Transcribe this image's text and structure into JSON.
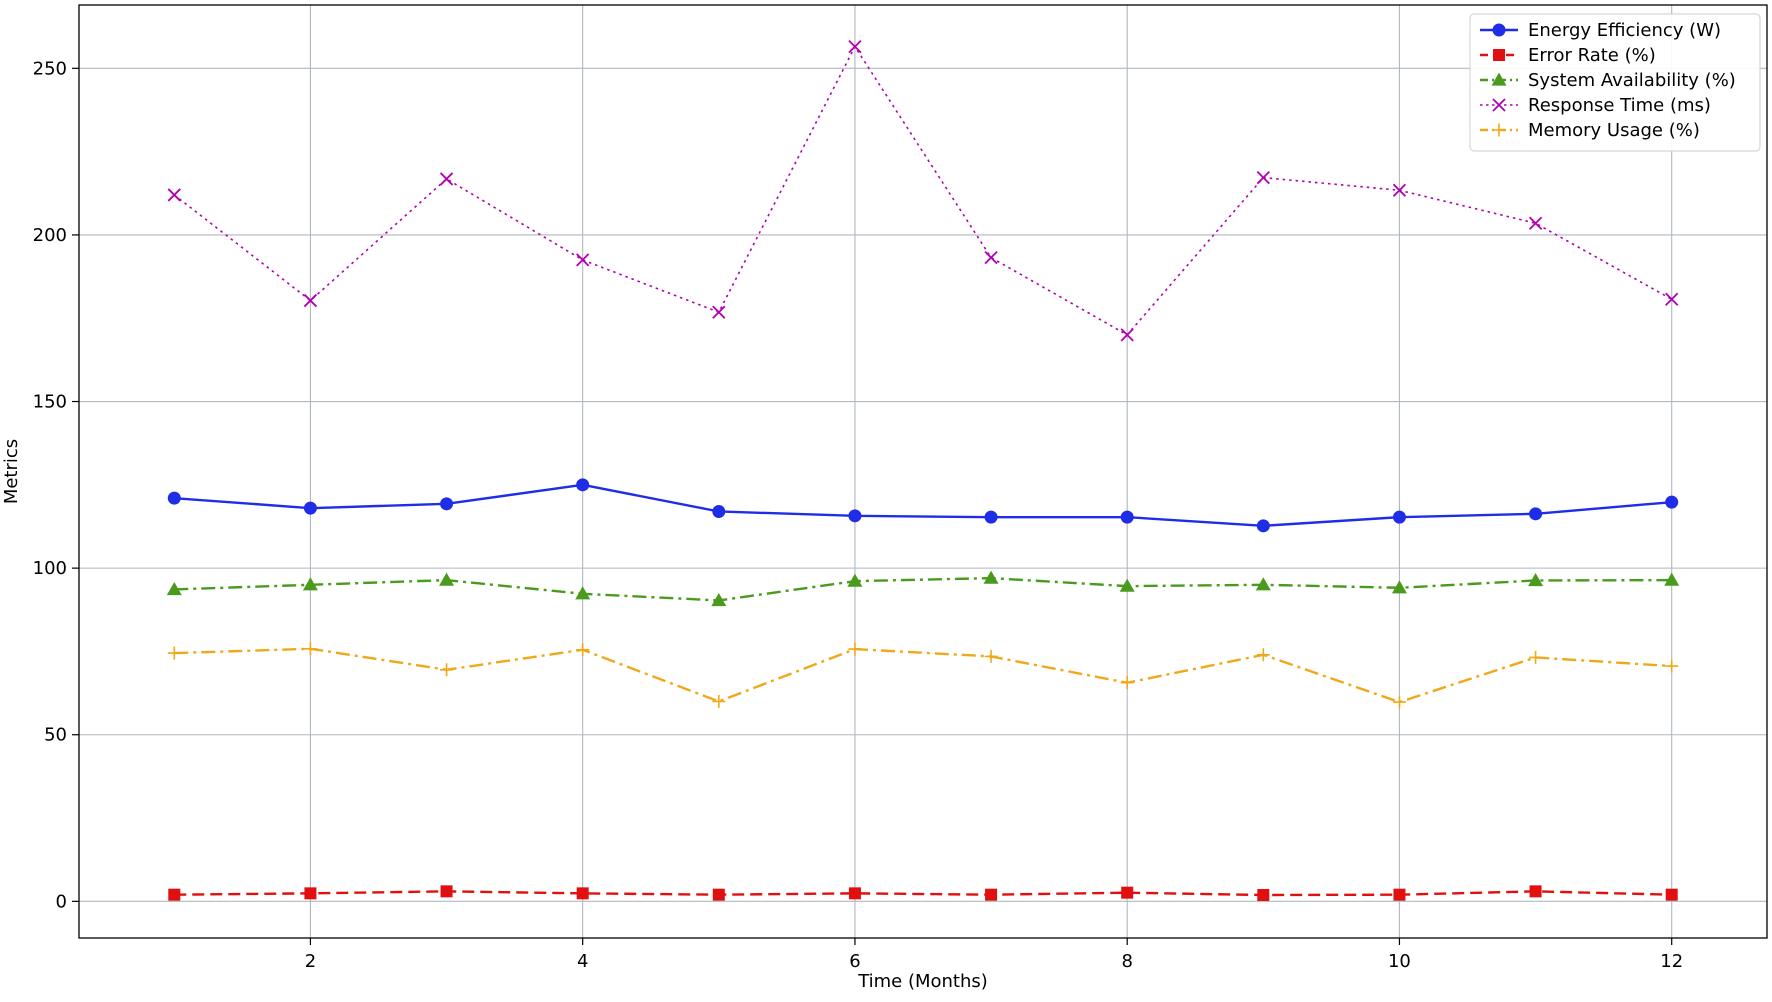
{
  "chart_data": {
    "type": "line",
    "title": "",
    "xlabel": "Time (Months)",
    "ylabel": "Metrics",
    "x": [
      1,
      2,
      3,
      4,
      5,
      6,
      7,
      8,
      9,
      10,
      11,
      12
    ],
    "xlim": [
      0.3,
      12.7
    ],
    "ylim": [
      -11,
      269
    ],
    "xticks": [
      2,
      4,
      6,
      8,
      10,
      12
    ],
    "yticks": [
      0,
      50,
      100,
      150,
      200,
      250
    ],
    "grid": true,
    "legend_position": "top-right",
    "series": [
      {
        "name": "Energy Efficiency (W)",
        "color": "#1f2ee6",
        "line_style": "solid",
        "marker": "circle",
        "values": [
          121,
          118,
          119.3,
          125,
          117,
          115.7,
          115.3,
          115.3,
          112.7,
          115.3,
          116.3,
          119.8
        ]
      },
      {
        "name": "Error Rate (%)",
        "color": "#e01010",
        "line_style": "dashed",
        "marker": "square",
        "values": [
          2,
          2.4,
          3,
          2.4,
          2,
          2.4,
          2,
          2.6,
          1.9,
          2,
          3,
          2
        ]
      },
      {
        "name": "System Availability (%)",
        "color": "#4a9a1e",
        "line_style": "dashdot",
        "marker": "triangle",
        "values": [
          93.6,
          95,
          96.4,
          92.3,
          90.3,
          96.1,
          97,
          94.6,
          95,
          94.1,
          96.3,
          96.4
        ]
      },
      {
        "name": "Response Time (ms)",
        "color": "#b000b0",
        "line_style": "dotted",
        "marker": "x",
        "values": [
          212,
          180.3,
          216.8,
          192.5,
          176.8,
          256.5,
          193.2,
          170,
          217.2,
          213.4,
          203.5,
          180.7
        ]
      },
      {
        "name": "Memory Usage (%)",
        "color": "#f0a818",
        "line_style": "dashdot",
        "marker": "plus",
        "values": [
          74.5,
          75.8,
          69.5,
          75.5,
          60,
          75.7,
          73.5,
          65.6,
          74,
          59.8,
          73.2,
          70.6
        ]
      }
    ]
  }
}
